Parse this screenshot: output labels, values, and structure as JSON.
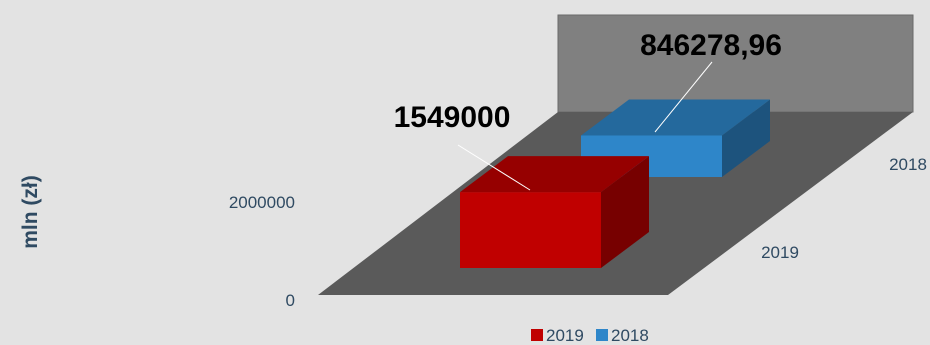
{
  "chart_data": {
    "type": "bar",
    "style": "3d-column",
    "ylabel": "mln (zł)",
    "yticks": [
      "0",
      "2000000"
    ],
    "categories": [
      "2019",
      "2018"
    ],
    "series": [
      {
        "name": "2019",
        "values": [
          1549000,
          null
        ],
        "color": "#c00000"
      },
      {
        "name": "2018",
        "values": [
          null,
          846278.96
        ],
        "color": "#2e86c9"
      }
    ],
    "data_labels": [
      "1549000",
      "846278,96"
    ],
    "legend_position": "bottom",
    "colors": {
      "background": "#e3e3e3",
      "floor": "#5a5a5a",
      "back_wall": "#808080",
      "axis_text": "#2f4a62"
    }
  }
}
